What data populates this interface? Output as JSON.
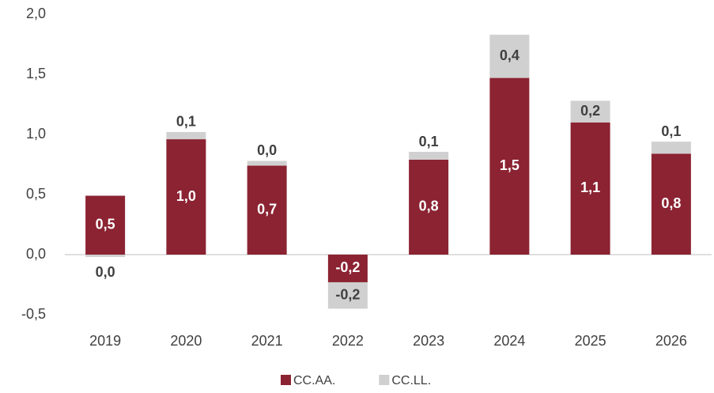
{
  "chart_data": {
    "type": "stacked_bar",
    "categories": [
      "2019",
      "2020",
      "2021",
      "2022",
      "2023",
      "2024",
      "2025",
      "2026"
    ],
    "series": [
      {
        "name": "CC.AA.",
        "color": "#8b2332",
        "values": [
          0.49,
          0.96,
          0.74,
          -0.23,
          0.79,
          1.47,
          1.1,
          0.84
        ],
        "value_labels": [
          "0,5",
          "1,0",
          "0,7",
          "-0,2",
          "0,8",
          "1,5",
          "1,1",
          "0,8"
        ]
      },
      {
        "name": "CC.LL.",
        "color": "#d0d0d0",
        "values": [
          -0.02,
          0.06,
          0.04,
          -0.22,
          0.065,
          0.36,
          0.18,
          0.1
        ],
        "value_labels": [
          "0,0",
          "0,1",
          "0,0",
          "-0,2",
          "0,1",
          "0,4",
          "0,2",
          "0,1"
        ]
      }
    ],
    "ylim": [
      -0.5,
      2.0
    ],
    "yticks": [
      {
        "value": -0.5,
        "label": "-0,5"
      },
      {
        "value": 0,
        "label": "0,0"
      },
      {
        "value": 0.5,
        "label": "0,5"
      },
      {
        "value": 1.0,
        "label": "1,0"
      },
      {
        "value": 1.5,
        "label": "1,5"
      },
      {
        "value": 2.0,
        "label": "2,0"
      }
    ],
    "grid": false,
    "legend": "bottom"
  }
}
